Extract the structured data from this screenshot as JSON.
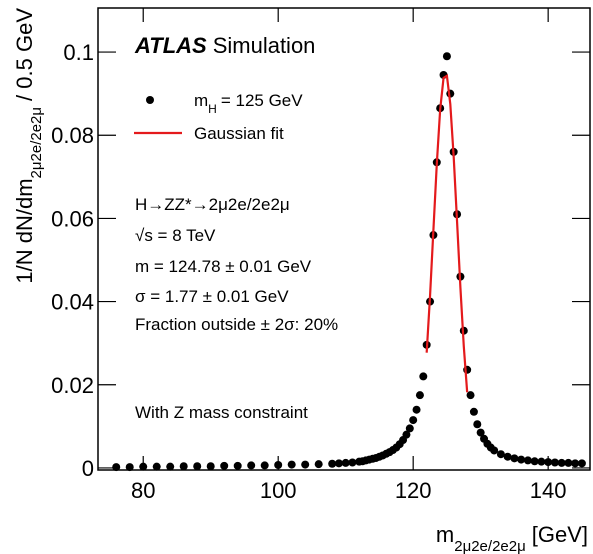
{
  "chart_data": {
    "type": "scatter",
    "title": {
      "bold": "ATLAS",
      "rest": "Simulation"
    },
    "x_label": {
      "base": "m",
      "sub": "2μ2e/2e2μ",
      "rest": "[GeV]"
    },
    "y_label": {
      "base": "1/N dN/dm",
      "sub": "2μ2e/2e2μ",
      "rest": "/ 0.5 GeV"
    },
    "annotations": [
      "H→ZZ*→2μ2e/2e2μ",
      "√s = 8 TeV",
      "m = 124.78 ± 0.01 GeV",
      "σ = 1.77 ± 0.01 GeV",
      "Fraction outside ± 2σ: 20%",
      "With Z mass constraint"
    ],
    "xlim": [
      73.3,
      146.2
    ],
    "ylim": [
      -0.0005,
      0.1106
    ],
    "xticks": [
      80,
      100,
      120,
      140
    ],
    "yticks": [
      0,
      0.02,
      0.04,
      0.06,
      0.08,
      0.1
    ],
    "series": [
      {
        "name": {
          "base": "m",
          "sub": "H",
          "rest": "= 125 GeV"
        },
        "kind": "points",
        "color": "#000000",
        "x": [
          76,
          78,
          80,
          82,
          84,
          86,
          88,
          90,
          92,
          94,
          96,
          98,
          100,
          102,
          104,
          106,
          108,
          109,
          110,
          111,
          112,
          112.5,
          113,
          113.5,
          114,
          114.5,
          115,
          115.5,
          116,
          116.5,
          117,
          117.5,
          118,
          118.5,
          119,
          119.5,
          120,
          120.5,
          121,
          121.5,
          122,
          122.5,
          123,
          123.5,
          124,
          124.5,
          125,
          125.5,
          126,
          126.5,
          127,
          127.5,
          128,
          128.5,
          129,
          129.5,
          130,
          130.5,
          131,
          131.5,
          132,
          133,
          134,
          135,
          136,
          137,
          138,
          139,
          140,
          141,
          142,
          143,
          144,
          145
        ],
        "values": [
          0.0002,
          0.0002,
          0.0003,
          0.0003,
          0.0003,
          0.0004,
          0.0004,
          0.0004,
          0.0005,
          0.0005,
          0.0006,
          0.0006,
          0.0007,
          0.0008,
          0.0008,
          0.0009,
          0.001,
          0.0011,
          0.0012,
          0.0013,
          0.0015,
          0.0016,
          0.0018,
          0.002,
          0.0022,
          0.0024,
          0.0027,
          0.003,
          0.0034,
          0.0038,
          0.0043,
          0.0049,
          0.0057,
          0.0067,
          0.008,
          0.0095,
          0.0115,
          0.014,
          0.0175,
          0.022,
          0.0296,
          0.04,
          0.056,
          0.0735,
          0.0865,
          0.0945,
          0.099,
          0.09,
          0.076,
          0.061,
          0.046,
          0.033,
          0.0236,
          0.0175,
          0.0135,
          0.0105,
          0.0085,
          0.007,
          0.0058,
          0.0049,
          0.0042,
          0.0033,
          0.0027,
          0.0023,
          0.002,
          0.0018,
          0.0016,
          0.0015,
          0.0014,
          0.0013,
          0.0012,
          0.0012,
          0.0011,
          0.0011
        ]
      },
      {
        "name": "Gaussian fit",
        "kind": "line",
        "color": "#e41a1c",
        "x": [
          122,
          122.5,
          123,
          123.5,
          124,
          124.5,
          125,
          125.5,
          126,
          126.5,
          127,
          127.5,
          128
        ],
        "values": [
          0.0277,
          0.0414,
          0.0573,
          0.0731,
          0.0862,
          0.0938,
          0.0943,
          0.0875,
          0.0749,
          0.0593,
          0.0433,
          0.0292,
          0.0182
        ]
      }
    ]
  }
}
